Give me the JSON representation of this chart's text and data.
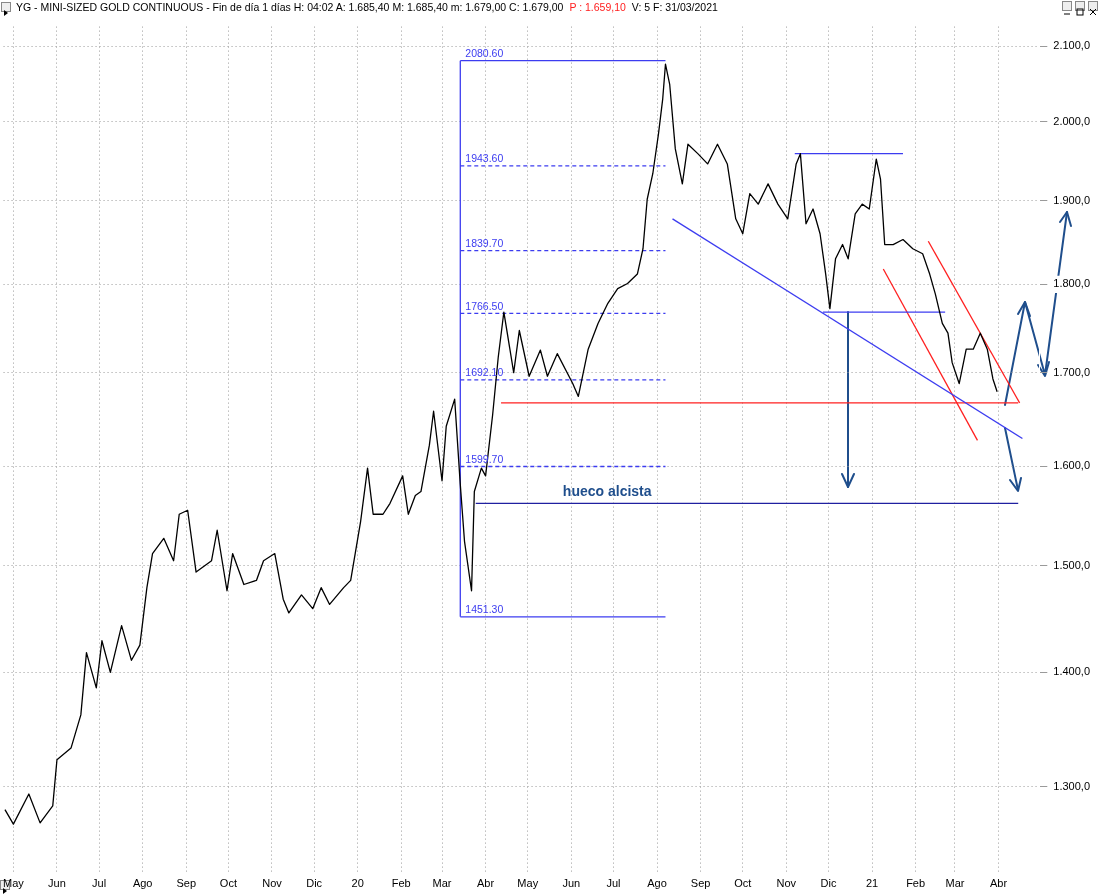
{
  "chart_data": {
    "type": "line",
    "title": "YG - MINI-SIZED GOLD CONTINUOUS - Fin de día 1 días H: 04:02 A: 1.685,40 M: 1.685,40 m: 1.679,00 C: 1.679,00",
    "subtitle": "P : 1.659,10",
    "annotations": [
      "V: 5 F: 31/03/2021",
      {
        "text": "2080.60",
        "x": "2020-03-14",
        "y": 2080.6
      },
      {
        "text": "1943.60",
        "x": "2020-03-14",
        "y": 1943.6
      },
      {
        "text": "1839.70",
        "x": "2020-03-14",
        "y": 1839.7
      },
      {
        "text": "1766.50",
        "x": "2020-03-14",
        "y": 1766.5
      },
      {
        "text": "1692.10",
        "x": "2020-03-14",
        "y": 1692.1
      },
      {
        "text": "1599.70",
        "x": "2020-03-14",
        "y": 1599.7
      },
      {
        "text": "1451.30",
        "x": "2020-03-14",
        "y": 1451.3
      },
      {
        "text": "hueco alcista",
        "x": "2020-06-27",
        "y": 1562
      }
    ],
    "xlim": [
      "2019-04-24",
      "2021-04-30"
    ],
    "xticks": [
      {
        "value": "2019-05-01",
        "label": "May"
      },
      {
        "value": "2019-06-01",
        "label": "Jun"
      },
      {
        "value": "2019-07-01",
        "label": "Jul"
      },
      {
        "value": "2019-08-01",
        "label": "Ago"
      },
      {
        "value": "2019-09-01",
        "label": "Sep"
      },
      {
        "value": "2019-10-01",
        "label": "Oct"
      },
      {
        "value": "2019-11-01",
        "label": "Nov"
      },
      {
        "value": "2019-12-01",
        "label": "Dic"
      },
      {
        "value": "2020-01-01",
        "label": "20"
      },
      {
        "value": "2020-02-01",
        "label": "Feb"
      },
      {
        "value": "2020-03-01",
        "label": "Mar"
      },
      {
        "value": "2020-04-01",
        "label": "Abr"
      },
      {
        "value": "2020-05-01",
        "label": "May"
      },
      {
        "value": "2020-06-01",
        "label": "Jun"
      },
      {
        "value": "2020-07-01",
        "label": "Jul"
      },
      {
        "value": "2020-08-01",
        "label": "Ago"
      },
      {
        "value": "2020-09-01",
        "label": "Sep"
      },
      {
        "value": "2020-10-01",
        "label": "Oct"
      },
      {
        "value": "2020-11-01",
        "label": "Nov"
      },
      {
        "value": "2020-12-01",
        "label": "Dic"
      },
      {
        "value": "2021-01-01",
        "label": "21"
      },
      {
        "value": "2021-02-01",
        "label": "Feb"
      },
      {
        "value": "2021-03-01",
        "label": "Mar"
      },
      {
        "value": "2021-04-01",
        "label": "Abr"
      }
    ],
    "ylim": [
      1228,
      2127
    ],
    "yticks": [
      {
        "value": 1300,
        "label": "1.300,0"
      },
      {
        "value": 1400,
        "label": "1.400,0"
      },
      {
        "value": 1500,
        "label": "1.500,0"
      },
      {
        "value": 1600,
        "label": "1.600,0"
      },
      {
        "value": 1700,
        "label": "1.700,0"
      },
      {
        "value": 1800,
        "label": "1.800,0"
      },
      {
        "value": 1900,
        "label": "1.900,0"
      },
      {
        "value": 2000,
        "label": "2.000,0"
      },
      {
        "value": 2100,
        "label": "2.100,0"
      }
    ],
    "log": "y",
    "grid": true,
    "legend": false,
    "marker": "none",
    "series": [
      {
        "color": "#000000",
        "x": [
          "2019-04-25",
          "2019-05-01",
          "2019-05-12",
          "2019-05-20",
          "2019-05-29",
          "2019-06-01",
          "2019-06-11",
          "2019-06-18",
          "2019-06-22",
          "2019-06-29",
          "2019-07-03",
          "2019-07-09",
          "2019-07-17",
          "2019-07-24",
          "2019-07-30",
          "2019-08-04",
          "2019-08-08",
          "2019-08-16",
          "2019-08-23",
          "2019-08-27",
          "2019-09-02",
          "2019-09-08",
          "2019-09-19",
          "2019-09-23",
          "2019-09-30",
          "2019-10-04",
          "2019-10-12",
          "2019-10-21",
          "2019-10-26",
          "2019-11-03",
          "2019-11-09",
          "2019-11-13",
          "2019-11-22",
          "2019-11-30",
          "2019-12-06",
          "2019-12-12",
          "2019-12-22",
          "2019-12-27",
          "2020-01-03",
          "2020-01-08",
          "2020-01-12",
          "2020-01-19",
          "2020-01-24",
          "2020-02-02",
          "2020-02-06",
          "2020-02-11",
          "2020-02-15",
          "2020-02-21",
          "2020-02-24",
          "2020-03-01",
          "2020-03-04",
          "2020-03-10",
          "2020-03-14",
          "2020-03-17",
          "2020-03-22",
          "2020-03-24",
          "2020-03-29",
          "2020-04-01",
          "2020-04-06",
          "2020-04-10",
          "2020-04-14",
          "2020-04-21",
          "2020-04-25",
          "2020-05-02",
          "2020-05-10",
          "2020-05-15",
          "2020-05-22",
          "2020-06-02",
          "2020-06-06",
          "2020-06-13",
          "2020-06-20",
          "2020-06-27",
          "2020-07-04",
          "2020-07-11",
          "2020-07-18",
          "2020-07-22",
          "2020-07-25",
          "2020-07-29",
          "2020-08-02",
          "2020-08-05",
          "2020-08-07",
          "2020-08-10",
          "2020-08-14",
          "2020-08-19",
          "2020-08-23",
          "2020-08-30",
          "2020-09-06",
          "2020-09-13",
          "2020-09-20",
          "2020-09-26",
          "2020-10-01",
          "2020-10-06",
          "2020-10-12",
          "2020-10-19",
          "2020-10-26",
          "2020-11-02",
          "2020-11-08",
          "2020-11-11",
          "2020-11-15",
          "2020-11-20",
          "2020-11-25",
          "2020-11-29",
          "2020-12-02",
          "2020-12-06",
          "2020-12-11",
          "2020-12-15",
          "2020-12-20",
          "2020-12-25",
          "2020-12-30",
          "2021-01-04",
          "2021-01-07",
          "2021-01-10",
          "2021-01-16",
          "2021-01-23",
          "2021-01-30",
          "2021-02-06",
          "2021-02-11",
          "2021-02-15",
          "2021-02-20",
          "2021-02-24",
          "2021-02-27",
          "2021-03-04",
          "2021-03-09",
          "2021-03-14",
          "2021-03-19",
          "2021-03-24",
          "2021-03-28",
          "2021-03-31"
        ],
        "values": [
          1281,
          1269,
          1294,
          1270,
          1284,
          1323,
          1333,
          1362,
          1418,
          1386,
          1429,
          1400,
          1443,
          1411,
          1425,
          1479,
          1512,
          1527,
          1505,
          1551,
          1555,
          1494,
          1505,
          1535,
          1476,
          1512,
          1482,
          1486,
          1505,
          1512,
          1468,
          1455,
          1472,
          1459,
          1479,
          1463,
          1479,
          1486,
          1543,
          1598,
          1551,
          1551,
          1562,
          1590,
          1551,
          1570,
          1574,
          1622,
          1658,
          1585,
          1642,
          1671,
          1581,
          1524,
          1476,
          1574,
          1598,
          1590,
          1654,
          1717,
          1768,
          1700,
          1747,
          1696,
          1725,
          1696,
          1721,
          1688,
          1674,
          1726,
          1755,
          1778,
          1795,
          1801,
          1812,
          1842,
          1902,
          1934,
          1984,
          2029,
          2076,
          2049,
          1965,
          1921,
          1971,
          1959,
          1946,
          1971,
          1946,
          1878,
          1860,
          1909,
          1896,
          1921,
          1896,
          1878,
          1946,
          1959,
          1872,
          1890,
          1860,
          1812,
          1772,
          1830,
          1847,
          1830,
          1884,
          1896,
          1890,
          1952,
          1927,
          1847,
          1847,
          1853,
          1842,
          1836,
          1812,
          1789,
          1755,
          1744,
          1711,
          1688,
          1726,
          1726,
          1744,
          1726,
          1693,
          1679
        ]
      },
      {
        "color": "#3c3cf0",
        "x": [
          "2020-03-14",
          "2020-03-14"
        ],
        "values": [
          1451.3,
          2080.6
        ]
      },
      {
        "color": "#3c3cf0",
        "x": [
          "2020-03-14",
          "2020-08-07"
        ],
        "values": [
          2080.6,
          2080.6
        ]
      },
      {
        "color": "#3c3cf0",
        "line_style": "dashed",
        "x": [
          "2020-03-14",
          "2020-08-07"
        ],
        "values": [
          1943.6,
          1943.6
        ]
      },
      {
        "color": "#3c3cf0",
        "line_style": "dashed",
        "x": [
          "2020-03-14",
          "2020-08-07"
        ],
        "values": [
          1839.7,
          1839.7
        ]
      },
      {
        "color": "#3c3cf0",
        "line_style": "dashed",
        "x": [
          "2020-03-14",
          "2020-08-07"
        ],
        "values": [
          1766.5,
          1766.5
        ]
      },
      {
        "color": "#3c3cf0",
        "line_style": "dashed",
        "x": [
          "2020-03-14",
          "2020-08-07"
        ],
        "values": [
          1692.1,
          1692.1
        ]
      },
      {
        "color": "#3c3cf0",
        "line_style": "dashed",
        "x": [
          "2020-03-14",
          "2020-08-07"
        ],
        "values": [
          1599.7,
          1599.7
        ]
      },
      {
        "color": "#3c3cf0",
        "x": [
          "2020-03-14",
          "2020-08-07"
        ],
        "values": [
          1451.3,
          1451.3
        ]
      },
      {
        "color": "#3c3cf0",
        "x": [
          "2020-08-12",
          "2021-04-18"
        ],
        "values": [
          1878,
          1629
        ]
      },
      {
        "color": "#3c3cf0",
        "x": [
          "2020-11-07",
          "2021-01-23"
        ],
        "values": [
          1959,
          1959
        ]
      },
      {
        "color": "#3c3cf0",
        "x": [
          "2020-11-27",
          "2021-02-22"
        ],
        "values": [
          1768,
          1768
        ]
      },
      {
        "color": "#ff2020",
        "x": [
          "2020-04-12",
          "2021-04-15"
        ],
        "values": [
          1667,
          1667
        ]
      },
      {
        "color": "#2020a0",
        "x": [
          "2020-03-25",
          "2021-04-15"
        ],
        "values": [
          1562,
          1562
        ]
      },
      {
        "color": "#ff2020",
        "x": [
          "2021-02-10",
          "2021-04-16"
        ],
        "values": [
          1851,
          1667
        ]
      },
      {
        "color": "#ff2020",
        "x": [
          "2021-01-09",
          "2021-03-17"
        ],
        "values": [
          1818,
          1627
        ]
      }
    ]
  }
}
